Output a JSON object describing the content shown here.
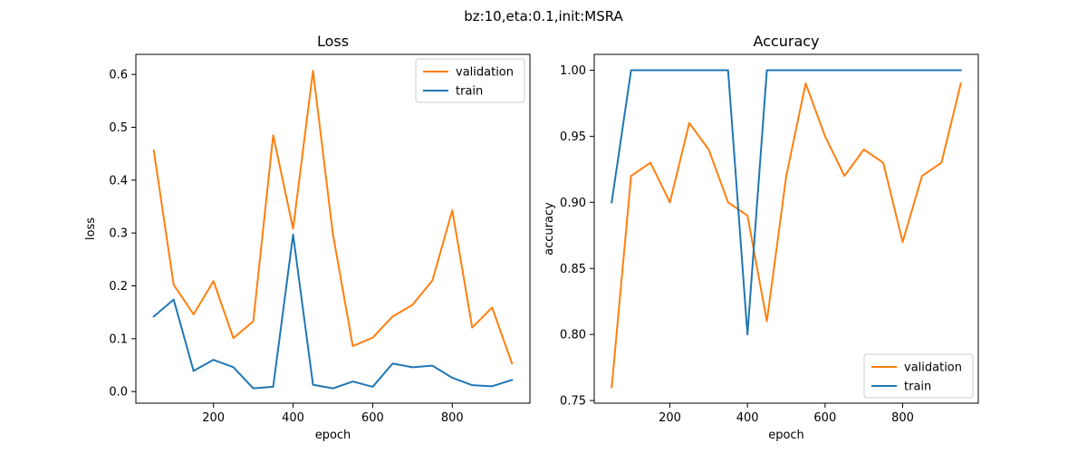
{
  "figure": {
    "suptitle": "bz:10,eta:0.1,init:MSRA"
  },
  "chart_data": [
    {
      "type": "line",
      "title": "Loss",
      "xlabel": "epoch",
      "ylabel": "loss",
      "xlim": [
        5,
        995
      ],
      "ylim": [
        -0.022,
        0.638
      ],
      "xticks": [
        200,
        400,
        600,
        800
      ],
      "yticks": [
        0.0,
        0.1,
        0.2,
        0.3,
        0.4,
        0.5,
        0.6
      ],
      "ytick_format": 1,
      "legend_position": "top-right",
      "x": [
        50,
        100,
        150,
        200,
        250,
        300,
        350,
        400,
        450,
        500,
        550,
        600,
        650,
        700,
        750,
        800,
        850,
        900,
        950
      ],
      "series": [
        {
          "name": "validation",
          "color": "#ff7f0e",
          "values": [
            0.456,
            0.202,
            0.146,
            0.209,
            0.101,
            0.133,
            0.485,
            0.308,
            0.607,
            0.298,
            0.086,
            0.102,
            0.142,
            0.164,
            0.21,
            0.343,
            0.121,
            0.159,
            0.053
          ]
        },
        {
          "name": "train",
          "color": "#1f77b4",
          "values": [
            0.142,
            0.174,
            0.039,
            0.06,
            0.046,
            0.006,
            0.009,
            0.297,
            0.013,
            0.006,
            0.019,
            0.009,
            0.053,
            0.046,
            0.049,
            0.026,
            0.012,
            0.01,
            0.022
          ]
        }
      ]
    },
    {
      "type": "line",
      "title": "Accuracy",
      "xlabel": "epoch",
      "ylabel": "accuracy",
      "xlim": [
        5,
        995
      ],
      "ylim": [
        0.748,
        1.012
      ],
      "xticks": [
        200,
        400,
        600,
        800
      ],
      "yticks": [
        0.75,
        0.8,
        0.85,
        0.9,
        0.95,
        1.0
      ],
      "ytick_format": 2,
      "legend_position": "bottom-right",
      "x": [
        50,
        100,
        150,
        200,
        250,
        300,
        350,
        400,
        450,
        500,
        550,
        600,
        650,
        700,
        750,
        800,
        850,
        900,
        950
      ],
      "series": [
        {
          "name": "validation",
          "color": "#ff7f0e",
          "values": [
            0.76,
            0.92,
            0.93,
            0.9,
            0.96,
            0.94,
            0.9,
            0.89,
            0.81,
            0.92,
            0.99,
            0.95,
            0.92,
            0.94,
            0.93,
            0.87,
            0.92,
            0.93,
            0.99
          ]
        },
        {
          "name": "train",
          "color": "#1f77b4",
          "values": [
            0.9,
            1.0,
            1.0,
            1.0,
            1.0,
            1.0,
            1.0,
            0.8,
            1.0,
            1.0,
            1.0,
            1.0,
            1.0,
            1.0,
            1.0,
            1.0,
            1.0,
            1.0,
            1.0
          ]
        }
      ]
    }
  ]
}
